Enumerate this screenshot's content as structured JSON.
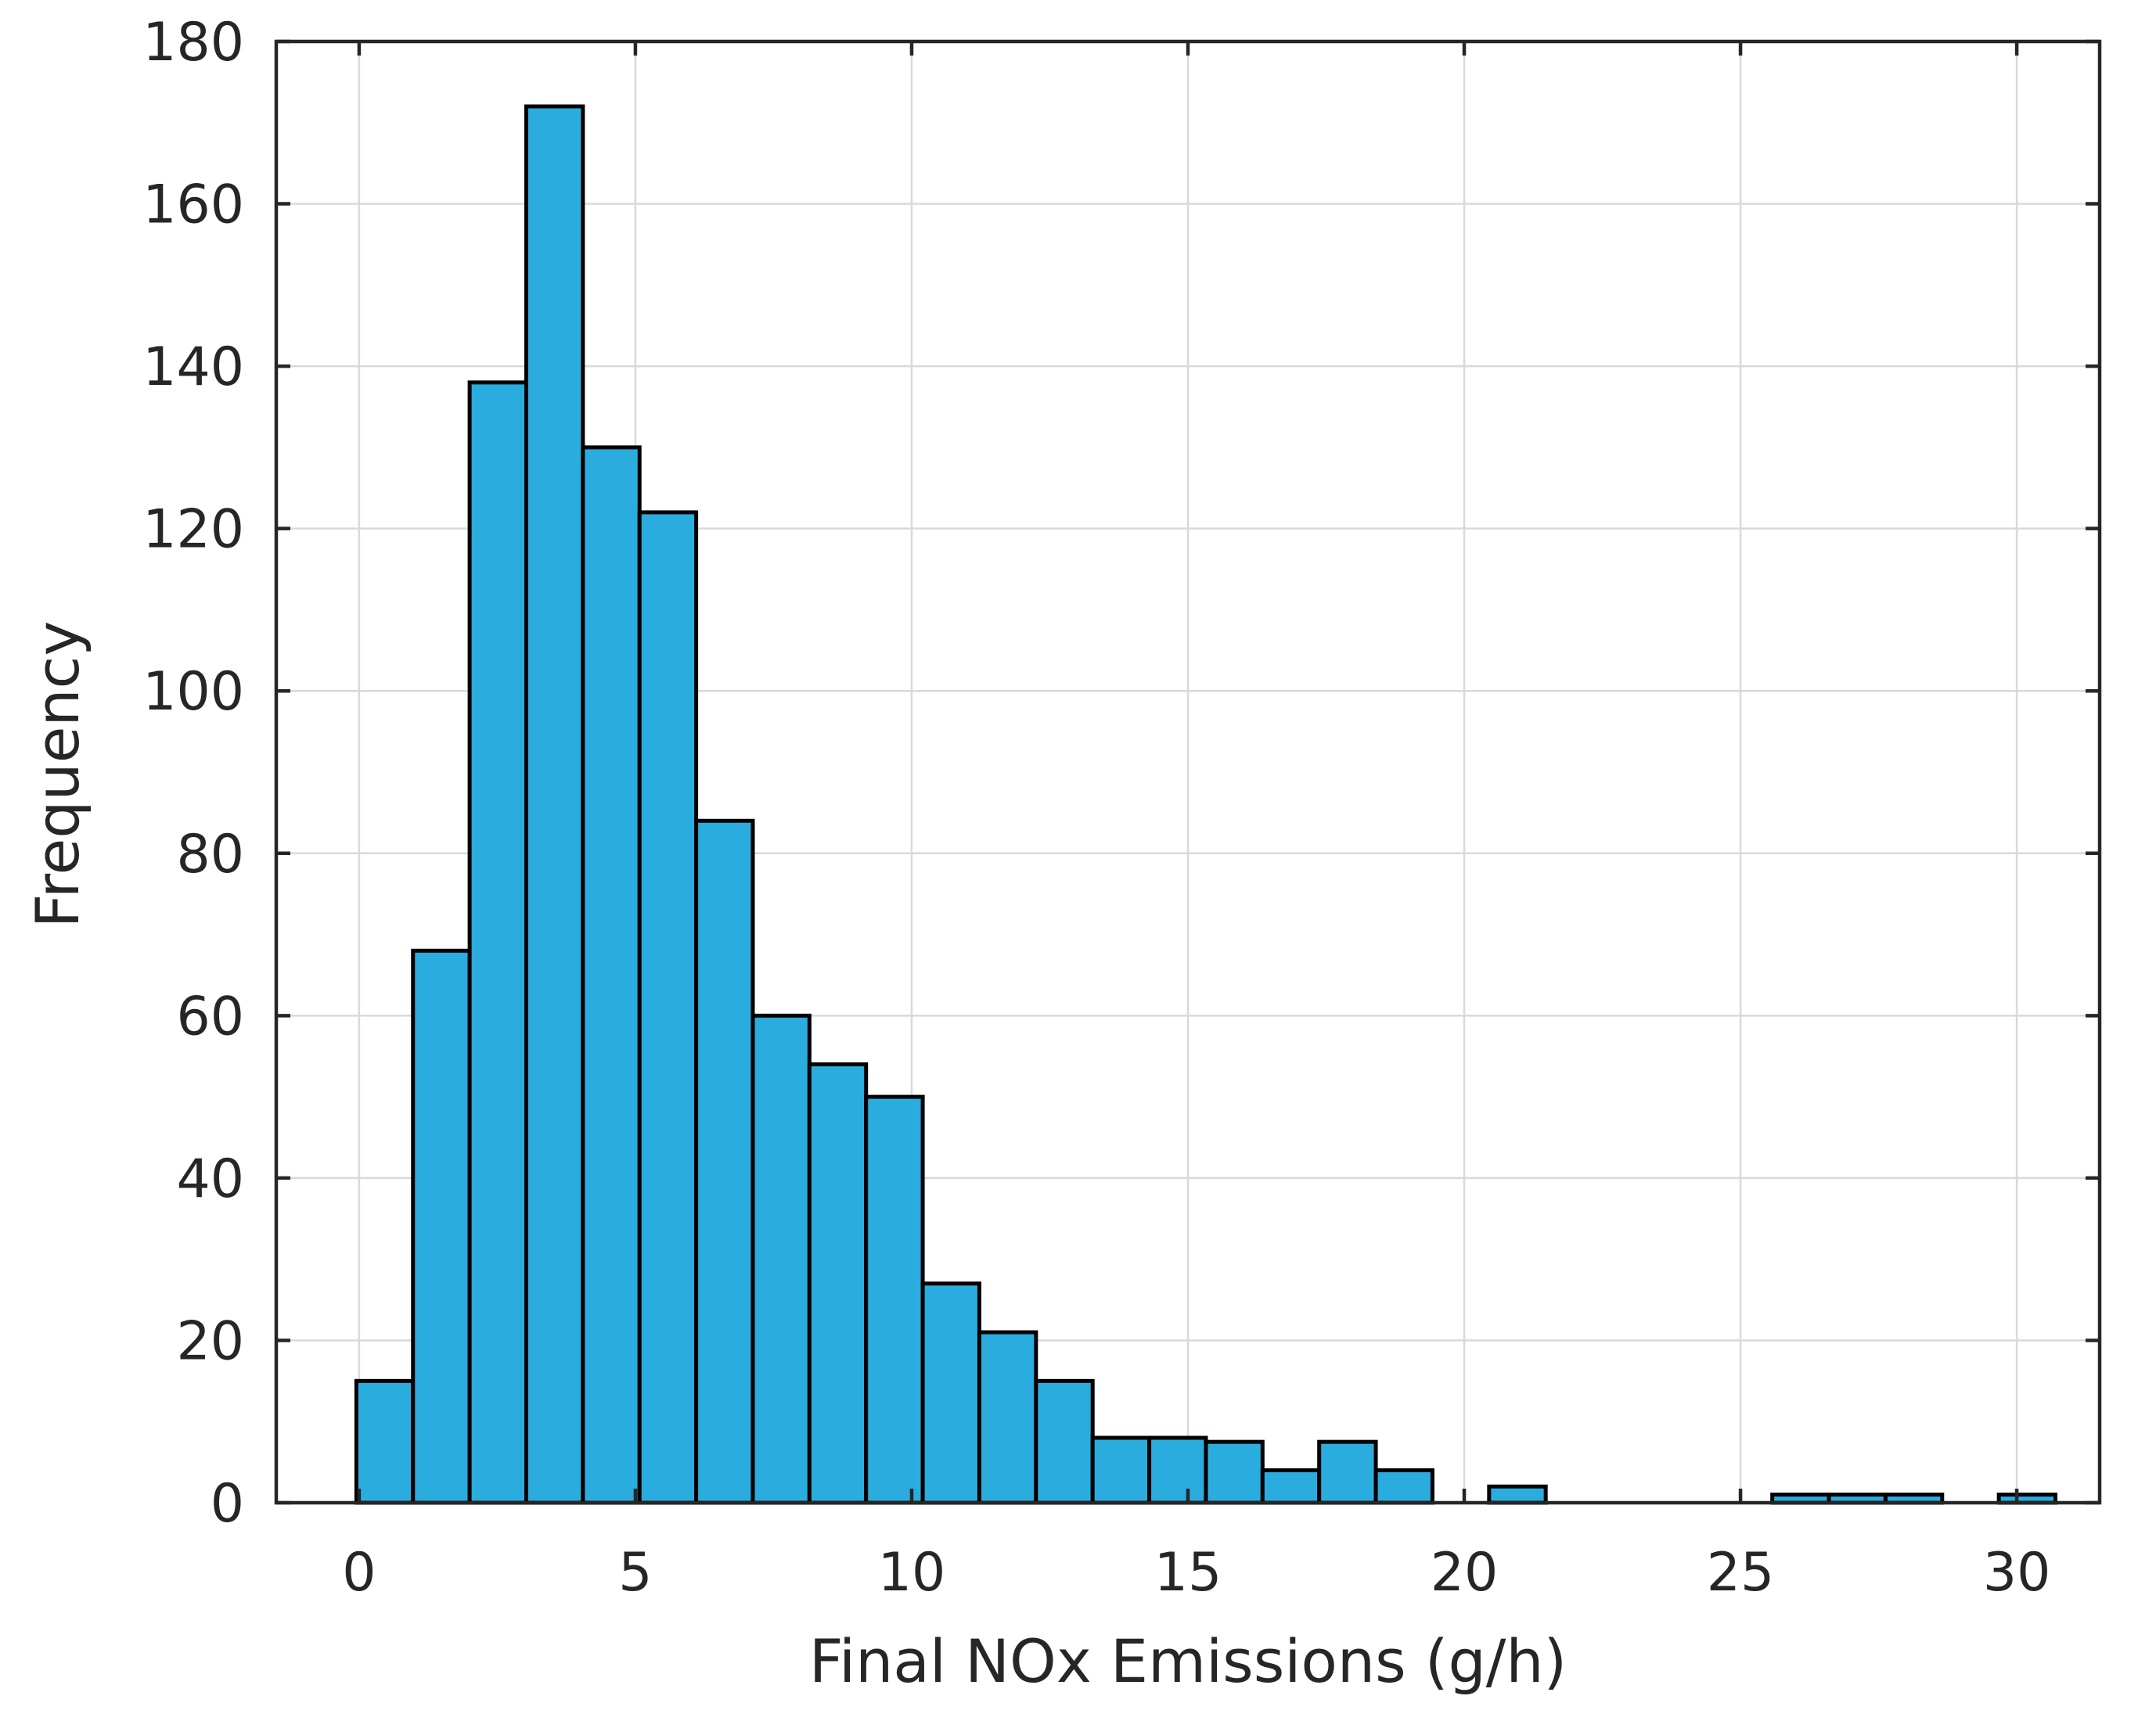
{
  "chart_data": {
    "type": "bar",
    "title": "",
    "xlabel": "Final NOx Emissions (g/h)",
    "ylabel": "Frequency",
    "xlim": [
      -1.5,
      31.5
    ],
    "ylim": [
      0,
      180
    ],
    "xticks": [
      0,
      5,
      10,
      15,
      20,
      25,
      30
    ],
    "yticks": [
      0,
      20,
      40,
      60,
      80,
      100,
      120,
      140,
      160,
      180
    ],
    "grid": true,
    "bar_color": "#2BACDE",
    "bar_edge_color": "#000000",
    "bin_width": 1.025,
    "bin_start": -0.05,
    "counts": [
      15,
      68,
      138,
      172,
      130,
      122,
      84,
      60,
      54,
      50,
      27,
      21,
      15,
      8,
      8,
      7.5,
      4,
      7.5,
      4,
      0,
      2,
      0,
      0,
      0,
      0,
      1,
      1,
      1,
      0,
      1
    ]
  }
}
